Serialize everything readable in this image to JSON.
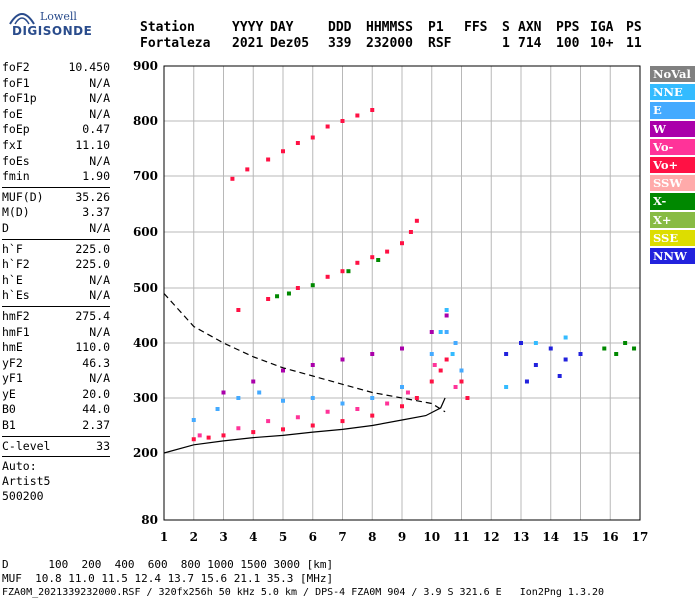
{
  "logo": {
    "brand_top": "Lowell",
    "brand_bottom": "DIGISONDE"
  },
  "header": {
    "labels": [
      "Station",
      "YYYY",
      "DAY",
      "DDD",
      "HHMMSS",
      "P1",
      "FFS",
      "S",
      "AXN",
      "PPS",
      "IGA",
      "PS"
    ],
    "values": [
      "Fortaleza",
      "2021",
      "Dez05",
      "339",
      "232000",
      "RSF",
      "",
      "1",
      "714",
      "100",
      "10+",
      "11"
    ]
  },
  "params": {
    "group1": [
      {
        "label": "foF2",
        "value": "10.450"
      },
      {
        "label": "foF1",
        "value": "N/A"
      },
      {
        "label": "foF1p",
        "value": "N/A"
      },
      {
        "label": "foE",
        "value": "N/A"
      },
      {
        "label": "foEp",
        "value": "0.47"
      },
      {
        "label": "fxI",
        "value": "11.10"
      },
      {
        "label": "foEs",
        "value": "N/A"
      },
      {
        "label": "fmin",
        "value": "1.90"
      }
    ],
    "group2": [
      {
        "label": "MUF(D)",
        "value": "35.26"
      },
      {
        "label": "M(D)",
        "value": "3.37"
      },
      {
        "label": "D",
        "value": "N/A"
      }
    ],
    "group3": [
      {
        "label": "h`F",
        "value": "225.0"
      },
      {
        "label": "h`F2",
        "value": "225.0"
      },
      {
        "label": "h`E",
        "value": "N/A"
      },
      {
        "label": "h`Es",
        "value": "N/A"
      }
    ],
    "group4": [
      {
        "label": "hmF2",
        "value": "275.4"
      },
      {
        "label": "hmF1",
        "value": "N/A"
      },
      {
        "label": "hmE",
        "value": "110.0"
      },
      {
        "label": "yF2",
        "value": "46.3"
      },
      {
        "label": "yF1",
        "value": "N/A"
      },
      {
        "label": "yE",
        "value": "20.0"
      },
      {
        "label": "B0",
        "value": "44.0"
      },
      {
        "label": "B1",
        "value": "2.37"
      }
    ],
    "group5": [
      {
        "label": "C-level",
        "value": "33"
      }
    ],
    "auto_lines": [
      "Auto:",
      "Artist5",
      "500200"
    ]
  },
  "legend": [
    {
      "label": "NoVal",
      "color": "#808080"
    },
    {
      "label": "NNE",
      "color": "#33bbff"
    },
    {
      "label": "E",
      "color": "#44aaff"
    },
    {
      "label": "W",
      "color": "#aa00aa"
    },
    {
      "label": "Vo-",
      "color": "#ff3399"
    },
    {
      "label": "Vo+",
      "color": "#ff1144"
    },
    {
      "label": "SSW",
      "color": "#ffaaaa"
    },
    {
      "label": "X-",
      "color": "#008800"
    },
    {
      "label": "X+",
      "color": "#88bb44"
    },
    {
      "label": "SSE",
      "color": "#dddd00"
    },
    {
      "label": "NNW",
      "color": "#2222dd"
    }
  ],
  "footer": {
    "line1": "D      100  200  400  600  800 1000 1500 3000 [km]",
    "line2": "MUF  10.8 11.0 11.5 12.4 13.7 15.6 21.1 35.3 [MHz]",
    "line3": "FZA0M_2021339232000.RSF / 320fx256h 50 kHz 5.0 km / DPS-4 FZA0M 904 / 3.9 S 321.6 E   Ion2Png 1.3.20"
  },
  "chart_data": {
    "type": "scatter",
    "x_ticks": [
      "1",
      "2",
      "3",
      "4",
      "5",
      "6",
      "7",
      "8",
      "9",
      "10",
      "11",
      "12",
      "13",
      "14",
      "15",
      "16",
      "17"
    ],
    "y_ticks": [
      "80",
      "200",
      "300",
      "400",
      "500",
      "600",
      "700",
      "800",
      "900"
    ],
    "xlim": [
      1,
      17
    ],
    "ylim_ticks": [
      80,
      900
    ],
    "grid": true,
    "series": [
      {
        "color": "#ff1144",
        "points": [
          [
            2.0,
            225
          ],
          [
            2.5,
            228
          ],
          [
            3.0,
            232
          ],
          [
            4.0,
            238
          ],
          [
            5.0,
            243
          ],
          [
            6.0,
            250
          ],
          [
            7.0,
            258
          ],
          [
            8.0,
            268
          ],
          [
            9.0,
            285
          ],
          [
            9.5,
            300
          ],
          [
            10.0,
            330
          ],
          [
            10.3,
            350
          ],
          [
            10.5,
            370
          ],
          [
            11.0,
            330
          ],
          [
            11.2,
            300
          ]
        ]
      },
      {
        "color": "#ff3399",
        "points": [
          [
            2.2,
            232
          ],
          [
            3.5,
            245
          ],
          [
            4.5,
            258
          ],
          [
            5.5,
            265
          ],
          [
            6.5,
            275
          ],
          [
            7.5,
            280
          ],
          [
            8.5,
            290
          ],
          [
            9.2,
            310
          ],
          [
            10.1,
            360
          ],
          [
            10.8,
            320
          ]
        ]
      },
      {
        "color": "#44aaff",
        "points": [
          [
            2.0,
            260
          ],
          [
            2.8,
            280
          ],
          [
            3.5,
            300
          ],
          [
            4.2,
            310
          ],
          [
            5.0,
            295
          ],
          [
            6.0,
            300
          ],
          [
            7.0,
            290
          ],
          [
            8.0,
            300
          ],
          [
            9.0,
            320
          ],
          [
            10.0,
            380
          ],
          [
            10.5,
            420
          ],
          [
            10.8,
            400
          ],
          [
            11.0,
            350
          ]
        ]
      },
      {
        "color": "#aa00aa",
        "points": [
          [
            3.0,
            310
          ],
          [
            4.0,
            330
          ],
          [
            5.0,
            350
          ],
          [
            6.0,
            360
          ],
          [
            7.0,
            370
          ],
          [
            8.0,
            380
          ],
          [
            9.0,
            390
          ],
          [
            10.0,
            420
          ],
          [
            10.5,
            450
          ]
        ]
      },
      {
        "color": "#ff1144",
        "points": [
          [
            3.5,
            460
          ],
          [
            4.5,
            480
          ],
          [
            5.5,
            500
          ],
          [
            6.5,
            520
          ],
          [
            7.0,
            530
          ],
          [
            7.5,
            545
          ],
          [
            8.0,
            555
          ],
          [
            8.5,
            565
          ],
          [
            9.0,
            580
          ],
          [
            9.3,
            600
          ],
          [
            9.5,
            620
          ]
        ]
      },
      {
        "color": "#008800",
        "points": [
          [
            4.8,
            485
          ],
          [
            5.2,
            490
          ],
          [
            6.0,
            505
          ],
          [
            7.2,
            530
          ],
          [
            8.2,
            550
          ]
        ]
      },
      {
        "color": "#ff1144",
        "points": [
          [
            3.3,
            695
          ],
          [
            3.8,
            712
          ],
          [
            4.5,
            730
          ],
          [
            5.0,
            745
          ],
          [
            5.5,
            760
          ],
          [
            6.0,
            770
          ],
          [
            6.5,
            790
          ],
          [
            7.0,
            800
          ],
          [
            7.5,
            810
          ],
          [
            8.0,
            820
          ]
        ]
      },
      {
        "color": "#2222dd",
        "points": [
          [
            12.5,
            380
          ],
          [
            13.0,
            400
          ],
          [
            13.5,
            360
          ],
          [
            14.0,
            390
          ],
          [
            14.5,
            370
          ],
          [
            15.0,
            380
          ],
          [
            13.2,
            330
          ],
          [
            14.3,
            340
          ]
        ]
      },
      {
        "color": "#33bbff",
        "points": [
          [
            10.3,
            420
          ],
          [
            10.5,
            460
          ],
          [
            10.7,
            380
          ],
          [
            12.5,
            320
          ],
          [
            13.5,
            400
          ],
          [
            14.5,
            410
          ]
        ]
      },
      {
        "color": "#008800",
        "points": [
          [
            15.8,
            390
          ],
          [
            16.2,
            380
          ],
          [
            16.5,
            400
          ],
          [
            16.8,
            390
          ]
        ]
      }
    ],
    "profile_lines": [
      {
        "style": "dashed",
        "points": [
          [
            1.0,
            490
          ],
          [
            1.5,
            460
          ],
          [
            2.0,
            430
          ],
          [
            3.0,
            400
          ],
          [
            4.0,
            375
          ],
          [
            5.0,
            355
          ],
          [
            6.0,
            340
          ],
          [
            7.0,
            325
          ],
          [
            8.0,
            310
          ],
          [
            9.0,
            300
          ],
          [
            10.0,
            290
          ],
          [
            10.45,
            275
          ]
        ]
      },
      {
        "style": "solid",
        "points": [
          [
            1.0,
            200
          ],
          [
            2.0,
            215
          ],
          [
            3.0,
            222
          ],
          [
            4.0,
            228
          ],
          [
            5.0,
            232
          ],
          [
            6.0,
            238
          ],
          [
            7.0,
            243
          ],
          [
            8.0,
            250
          ],
          [
            9.0,
            260
          ],
          [
            9.8,
            268
          ],
          [
            10.3,
            282
          ],
          [
            10.45,
            300
          ]
        ]
      }
    ]
  }
}
